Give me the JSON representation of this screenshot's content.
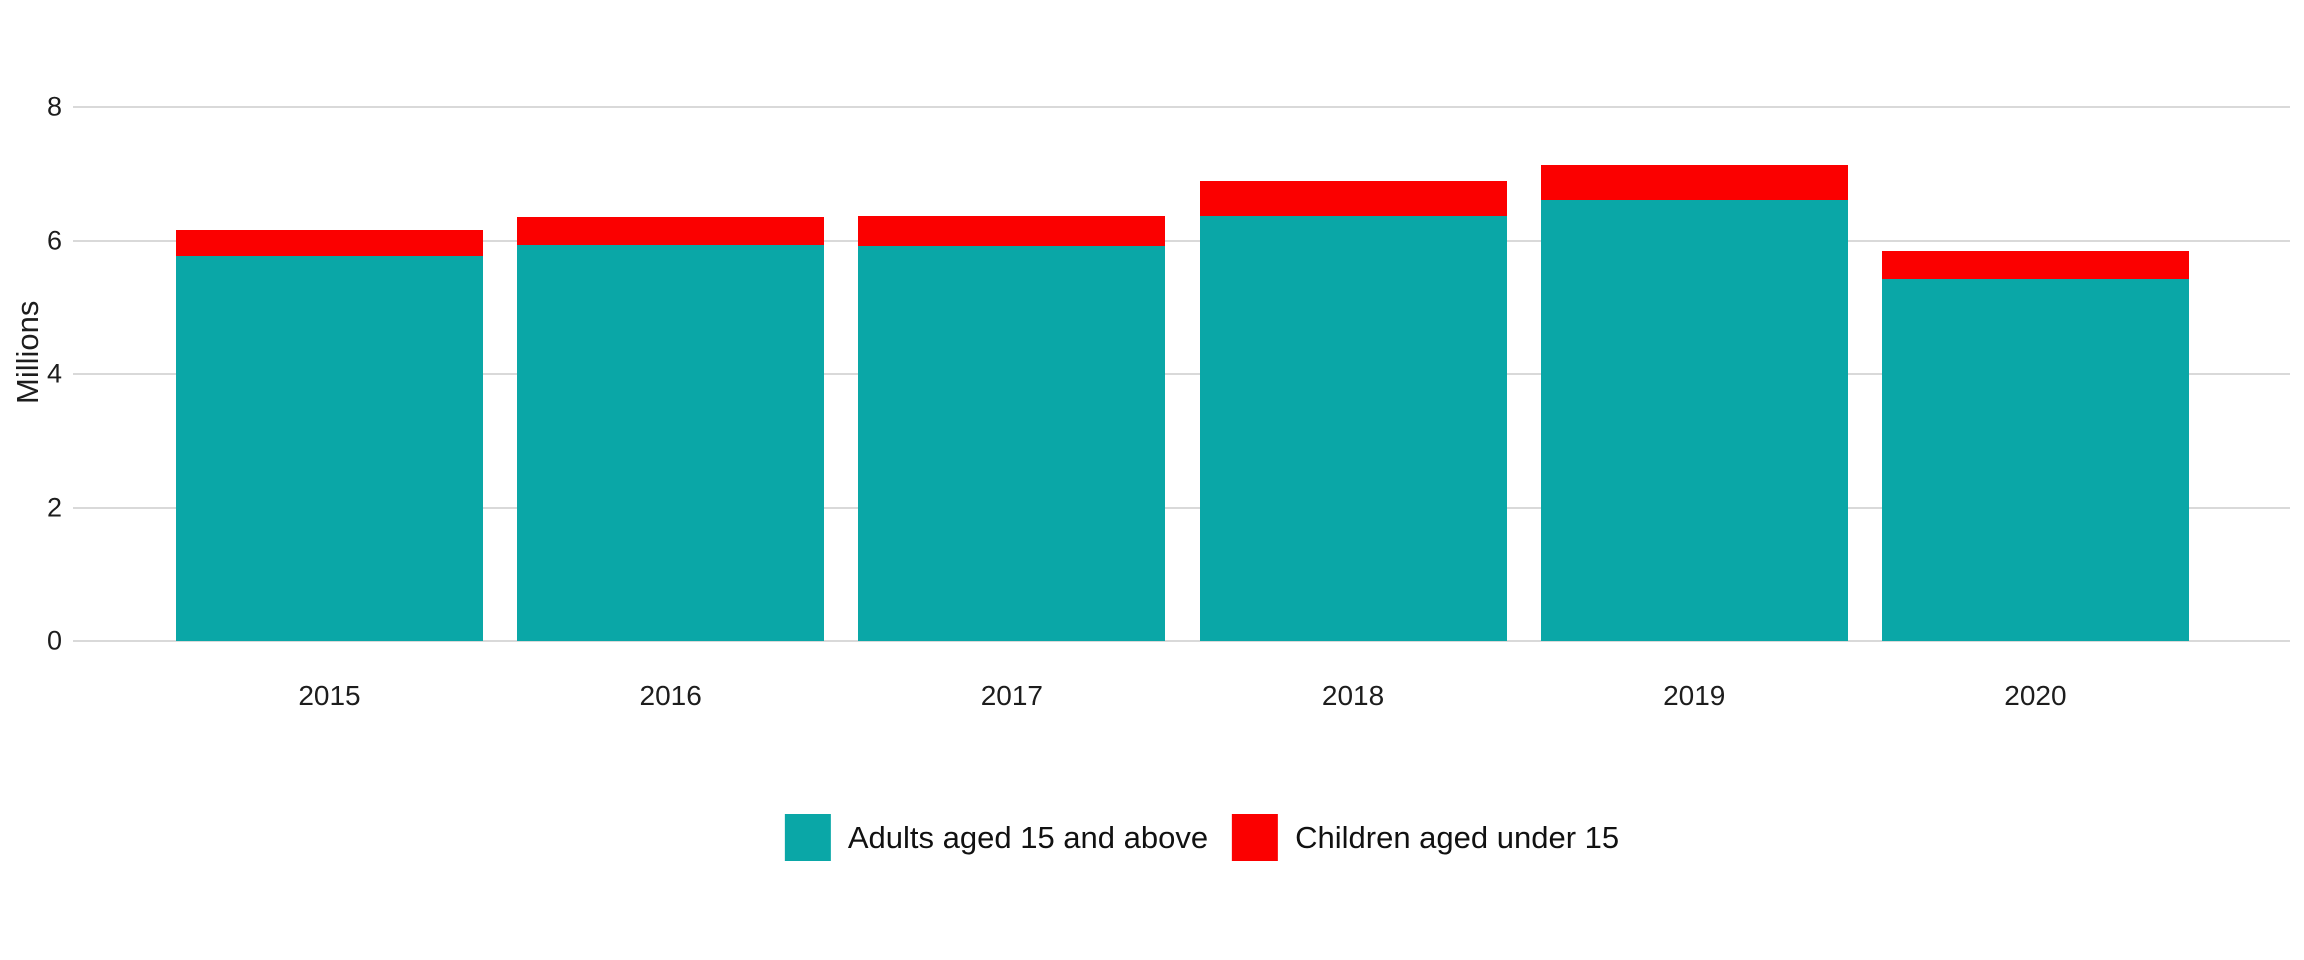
{
  "chart_data": {
    "type": "bar",
    "stacked": true,
    "title": "",
    "xlabel": "",
    "ylabel": "Millions",
    "categories": [
      "2015",
      "2016",
      "2017",
      "2018",
      "2019",
      "2020"
    ],
    "series": [
      {
        "name": "Adults aged 15 and above",
        "color": "#0aa7a7",
        "values": [
          5.77,
          5.93,
          5.92,
          6.36,
          6.6,
          5.43
        ]
      },
      {
        "name": "Children aged under 15",
        "color": "#fb0000",
        "values": [
          0.39,
          0.43,
          0.44,
          0.53,
          0.53,
          0.41
        ]
      }
    ],
    "totals": [
      6.16,
      6.36,
      6.36,
      6.89,
      7.13,
      5.84
    ],
    "ylim": [
      0,
      8
    ],
    "yticks": [
      "0",
      "2",
      "4",
      "6",
      "8"
    ],
    "grid": true,
    "legend_position": "bottom-center",
    "background_color": "#ffffff",
    "gridline_color": "#d9d9d9",
    "text_color": "#1d1d1d"
  }
}
